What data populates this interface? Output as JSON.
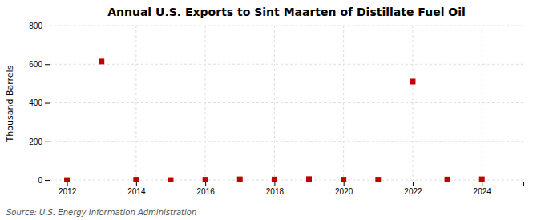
{
  "chart_data": {
    "type": "scatter",
    "title": "Annual U.S. Exports to Sint Maarten of Distillate Fuel Oil",
    "ylabel": "Thousand Barrels",
    "annotations": [
      "Source: U.S. Energy Information Administration"
    ],
    "x": [
      2012,
      2013,
      2014,
      2015,
      2016,
      2017,
      2018,
      2019,
      2020,
      2021,
      2022,
      2023,
      2024
    ],
    "values": [
      0,
      614,
      2,
      0,
      2,
      4,
      3,
      5,
      2,
      2,
      510,
      3,
      4
    ],
    "color": "#c00000",
    "marker": "square",
    "xlim": [
      2011.5,
      2025.2
    ],
    "ylim": [
      -8,
      800
    ],
    "xticks": [
      2012,
      2014,
      2016,
      2018,
      2020,
      2022,
      2024
    ],
    "yticks": [
      0,
      200,
      400,
      600,
      800
    ],
    "grid": true
  }
}
